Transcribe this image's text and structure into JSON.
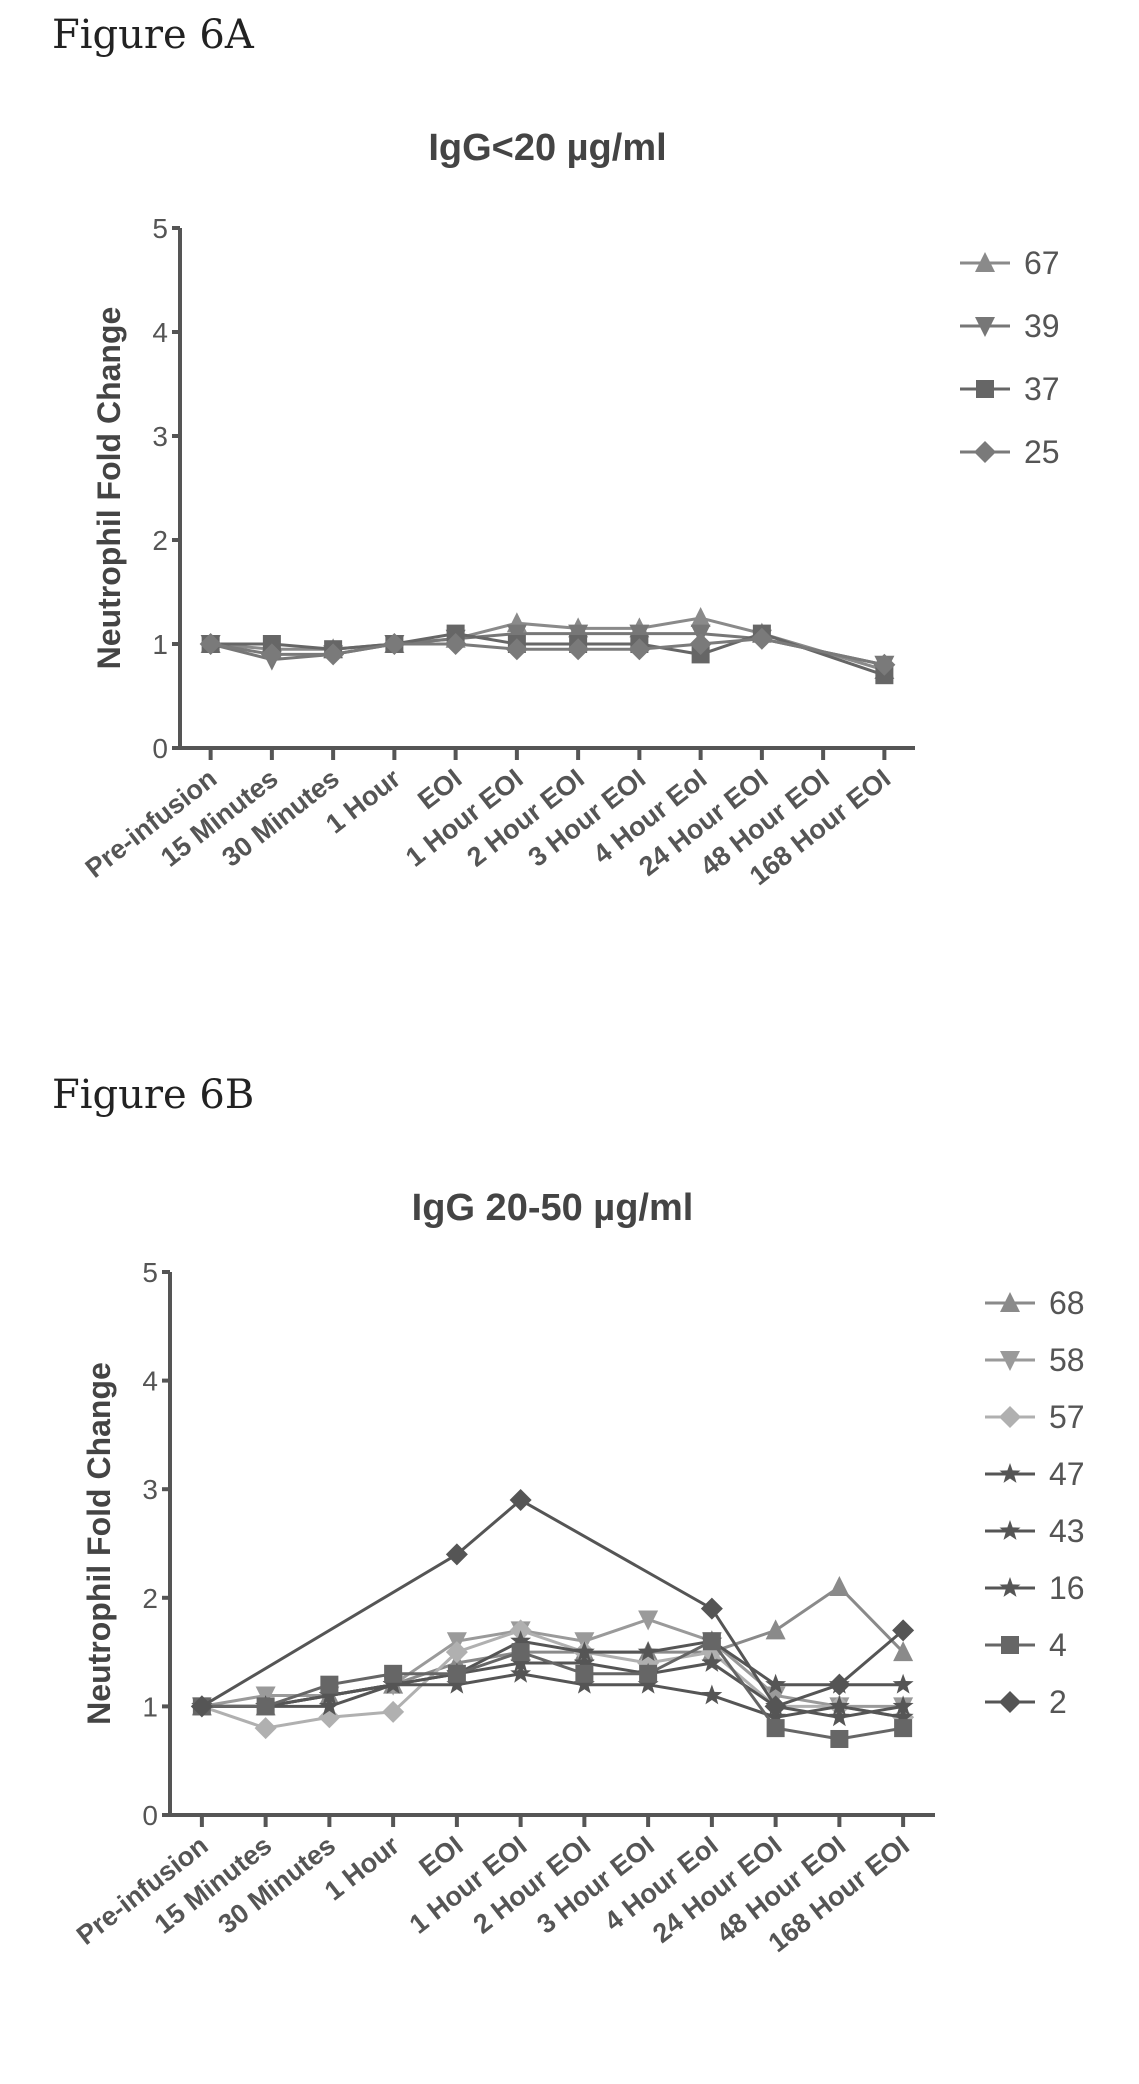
{
  "figures": [
    {
      "label": "Figure 6A"
    },
    {
      "label": "Figure 6B"
    }
  ],
  "chart_data": [
    {
      "type": "line",
      "title": "IgG<20 µg/ml",
      "ylabel": "Neutrophil Fold Change",
      "xlabel": "",
      "ylim": [
        0,
        5
      ],
      "yticks": [
        "0",
        "1",
        "2",
        "3",
        "4",
        "5"
      ],
      "legend_position": "right",
      "categories": [
        "Pre-infusion",
        "15 Minutes",
        "30 Minutes",
        "1 Hour",
        "EOI",
        "1 Hour EOI",
        "2 Hour EOI",
        "3 Hour EOI",
        "4 Hour EoI",
        "24 Hour EOI",
        "48 Hour EOI",
        "168 Hour EOI"
      ],
      "series": [
        {
          "name": "67",
          "marker": "triangle",
          "color": "#8a8a8a",
          "values": [
            1.0,
            0.95,
            0.95,
            1.0,
            1.05,
            1.2,
            1.15,
            1.15,
            1.25,
            1.1,
            null,
            0.75
          ]
        },
        {
          "name": "39",
          "marker": "triangle-down",
          "color": "#777777",
          "values": [
            1.0,
            0.85,
            0.9,
            1.0,
            1.05,
            1.1,
            1.1,
            1.1,
            1.1,
            1.05,
            null,
            0.8
          ]
        },
        {
          "name": "37",
          "marker": "square",
          "color": "#666666",
          "values": [
            1.0,
            1.0,
            0.95,
            1.0,
            1.1,
            1.0,
            1.0,
            1.0,
            0.9,
            1.1,
            null,
            0.7
          ]
        },
        {
          "name": "25",
          "marker": "diamond",
          "color": "#7a7a7a",
          "values": [
            1.0,
            0.9,
            0.9,
            1.0,
            1.0,
            0.95,
            0.95,
            0.95,
            1.0,
            1.05,
            null,
            0.8
          ]
        }
      ]
    },
    {
      "type": "line",
      "title": "IgG 20-50 µg/ml",
      "ylabel": "Neutrophil Fold Change",
      "xlabel": "",
      "ylim": [
        0,
        5
      ],
      "yticks": [
        "0",
        "1",
        "2",
        "3",
        "4",
        "5"
      ],
      "legend_position": "right",
      "categories": [
        "Pre-infusion",
        "15 Minutes",
        "30 Minutes",
        "1 Hour",
        "EOI",
        "1 Hour EOI",
        "2 Hour EOI",
        "3 Hour EOI",
        "4 Hour EoI",
        "24 Hour EOI",
        "48 Hour EOI",
        "168 Hour EOI"
      ],
      "series": [
        {
          "name": "68",
          "marker": "triangle",
          "color": "#8a8a8a",
          "values": [
            1.0,
            1.0,
            1.1,
            1.2,
            1.4,
            1.5,
            1.5,
            1.5,
            1.5,
            1.7,
            2.1,
            1.5
          ]
        },
        {
          "name": "58",
          "marker": "triangle-down",
          "color": "#9a9a9a",
          "values": [
            1.0,
            1.1,
            1.1,
            1.2,
            1.6,
            1.7,
            1.6,
            1.8,
            1.6,
            1.1,
            1.0,
            1.0
          ]
        },
        {
          "name": "57",
          "marker": "diamond",
          "color": "#b0b0b0",
          "values": [
            1.0,
            0.8,
            0.9,
            0.95,
            1.5,
            1.7,
            1.5,
            1.4,
            1.5,
            1.0,
            1.0,
            0.9
          ]
        },
        {
          "name": "47",
          "marker": "star",
          "color": "#555555",
          "values": [
            1.0,
            1.0,
            1.1,
            1.2,
            1.3,
            1.6,
            1.5,
            1.5,
            1.6,
            1.2,
            1.2,
            1.2
          ]
        },
        {
          "name": "43",
          "marker": "star",
          "color": "#555555",
          "values": [
            1.0,
            1.0,
            1.1,
            1.2,
            1.3,
            1.4,
            1.4,
            1.3,
            1.4,
            1.0,
            0.9,
            1.0
          ]
        },
        {
          "name": "16",
          "marker": "star",
          "color": "#555555",
          "values": [
            1.0,
            1.0,
            1.0,
            1.2,
            1.2,
            1.3,
            1.2,
            1.2,
            1.1,
            0.9,
            1.0,
            0.9
          ]
        },
        {
          "name": "4",
          "marker": "square",
          "color": "#666666",
          "values": [
            1.0,
            1.0,
            1.2,
            1.3,
            1.3,
            1.5,
            1.3,
            1.3,
            1.6,
            0.8,
            0.7,
            0.8
          ]
        },
        {
          "name": "2",
          "marker": "diamond",
          "color": "#555555",
          "values": [
            1.0,
            null,
            null,
            null,
            2.4,
            2.9,
            null,
            null,
            1.9,
            1.0,
            1.2,
            1.7
          ]
        }
      ]
    }
  ]
}
